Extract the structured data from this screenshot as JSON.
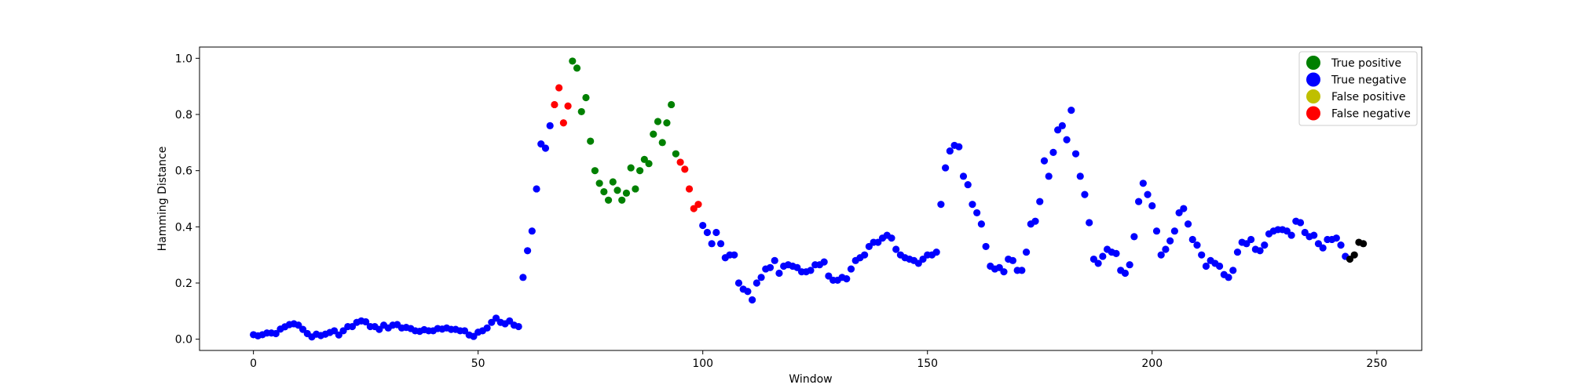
{
  "chart_data": {
    "type": "scatter",
    "xlabel": "Window",
    "ylabel": "Hamming Distance",
    "xlim": [
      -12,
      260
    ],
    "ylim": [
      -0.04,
      1.04
    ],
    "x_ticks": [
      0,
      50,
      100,
      150,
      200,
      250
    ],
    "y_ticks": [
      0.0,
      0.2,
      0.4,
      0.6,
      0.8,
      1.0
    ],
    "x_tick_labels": [
      "0",
      "50",
      "100",
      "150",
      "200",
      "250"
    ],
    "y_tick_labels": [
      "0.0",
      "0.2",
      "0.4",
      "0.6",
      "0.8",
      "1.0"
    ],
    "grid": false,
    "legend_position": "top-right",
    "colors": {
      "true_positive": "#008000",
      "true_negative": "#0000ff",
      "false_positive": "#bfbf00",
      "false_negative": "#ff0000"
    },
    "legend": [
      {
        "label": "True positive",
        "color_key": "true_positive"
      },
      {
        "label": "True negative",
        "color_key": "true_negative"
      },
      {
        "label": "False positive",
        "color_key": "false_positive"
      },
      {
        "label": "False negative",
        "color_key": "false_negative"
      }
    ],
    "x": [
      0,
      1,
      2,
      3,
      4,
      5,
      6,
      7,
      8,
      9,
      10,
      11,
      12,
      13,
      14,
      15,
      16,
      17,
      18,
      19,
      20,
      21,
      22,
      23,
      24,
      25,
      26,
      27,
      28,
      29,
      30,
      31,
      32,
      33,
      34,
      35,
      36,
      37,
      38,
      39,
      40,
      41,
      42,
      43,
      44,
      45,
      46,
      47,
      48,
      49,
      50,
      51,
      52,
      53,
      54,
      55,
      56,
      57,
      58,
      59,
      60,
      61,
      62,
      63,
      64,
      65,
      66,
      67,
      68,
      69,
      70,
      71,
      72,
      73,
      74,
      75,
      76,
      77,
      78,
      79,
      80,
      81,
      82,
      83,
      84,
      85,
      86,
      87,
      88,
      89,
      90,
      91,
      92,
      93,
      94,
      95,
      96,
      97,
      98,
      99,
      100,
      101,
      102,
      103,
      104,
      105,
      106,
      107,
      108,
      109,
      110,
      111,
      112,
      113,
      114,
      115,
      116,
      117,
      118,
      119,
      120,
      121,
      122,
      123,
      124,
      125,
      126,
      127,
      128,
      129,
      130,
      131,
      132,
      133,
      134,
      135,
      136,
      137,
      138,
      139,
      140,
      141,
      142,
      143,
      144,
      145,
      146,
      147,
      148,
      149,
      150,
      151,
      152,
      153,
      154,
      155,
      156,
      157,
      158,
      159,
      160,
      161,
      162,
      163,
      164,
      165,
      166,
      167,
      168,
      169,
      170,
      171,
      172,
      173,
      174,
      175,
      176,
      177,
      178,
      179,
      180,
      181,
      182,
      183,
      184,
      185,
      186,
      187,
      188,
      189,
      190,
      191,
      192,
      193,
      194,
      195,
      196,
      197,
      198,
      199,
      200,
      201,
      202,
      203,
      204,
      205,
      206,
      207,
      208,
      209,
      210,
      211,
      212,
      213,
      214,
      215,
      216,
      217,
      218,
      219,
      220,
      221,
      222,
      223,
      224,
      225,
      226,
      227,
      228,
      229,
      230,
      231,
      232,
      233,
      234,
      235,
      236,
      237,
      238,
      239,
      240,
      241,
      242,
      243,
      244,
      245,
      246,
      247
    ],
    "y": [
      0.016,
      0.012,
      0.016,
      0.022,
      0.022,
      0.02,
      0.036,
      0.044,
      0.052,
      0.055,
      0.05,
      0.035,
      0.02,
      0.008,
      0.018,
      0.013,
      0.018,
      0.024,
      0.03,
      0.015,
      0.03,
      0.045,
      0.045,
      0.06,
      0.065,
      0.062,
      0.045,
      0.045,
      0.035,
      0.05,
      0.04,
      0.05,
      0.052,
      0.04,
      0.042,
      0.038,
      0.03,
      0.028,
      0.034,
      0.03,
      0.03,
      0.038,
      0.036,
      0.04,
      0.035,
      0.035,
      0.03,
      0.03,
      0.015,
      0.01,
      0.025,
      0.03,
      0.04,
      0.06,
      0.075,
      0.06,
      0.055,
      0.065,
      0.05,
      0.045,
      0.22,
      0.315,
      0.385,
      0.535,
      0.695,
      0.68,
      0.76,
      0.835,
      0.895,
      0.77,
      0.83,
      0.99,
      0.965,
      0.81,
      0.86,
      0.705,
      0.6,
      0.555,
      0.525,
      0.495,
      0.56,
      0.53,
      0.495,
      0.52,
      0.61,
      0.535,
      0.6,
      0.64,
      0.625,
      0.73,
      0.775,
      0.7,
      0.77,
      0.835,
      0.66,
      0.63,
      0.605,
      0.535,
      0.465,
      0.48,
      0.405,
      0.38,
      0.34,
      0.38,
      0.34,
      0.29,
      0.3,
      0.3,
      0.2,
      0.178,
      0.17,
      0.14,
      0.2,
      0.22,
      0.25,
      0.255,
      0.28,
      0.235,
      0.26,
      0.265,
      0.26,
      0.255,
      0.24,
      0.24,
      0.245,
      0.265,
      0.265,
      0.275,
      0.225,
      0.21,
      0.21,
      0.22,
      0.215,
      0.25,
      0.28,
      0.29,
      0.3,
      0.33,
      0.345,
      0.345,
      0.36,
      0.37,
      0.36,
      0.32,
      0.3,
      0.29,
      0.285,
      0.28,
      0.27,
      0.285,
      0.3,
      0.3,
      0.31,
      0.48,
      0.61,
      0.67,
      0.69,
      0.685,
      0.58,
      0.55,
      0.48,
      0.45,
      0.41,
      0.33,
      0.26,
      0.25,
      0.255,
      0.24,
      0.285,
      0.28,
      0.245,
      0.245,
      0.31,
      0.41,
      0.42,
      0.49,
      0.635,
      0.58,
      0.665,
      0.745,
      0.76,
      0.71,
      0.815,
      0.66,
      0.58,
      0.515,
      0.415,
      0.285,
      0.27,
      0.295,
      0.32,
      0.31,
      0.305,
      0.245,
      0.235,
      0.265,
      0.365,
      0.49,
      0.555,
      0.515,
      0.475,
      0.385,
      0.3,
      0.32,
      0.35,
      0.385,
      0.45,
      0.465,
      0.41,
      0.355,
      0.335,
      0.3,
      0.26,
      0.28,
      0.27,
      0.26,
      0.23,
      0.22,
      0.245,
      0.31,
      0.345,
      0.34,
      0.355,
      0.32,
      0.315,
      0.335,
      0.375,
      0.385,
      0.39,
      0.39,
      0.385,
      0.37,
      0.42,
      0.415,
      0.38,
      0.365,
      0.37,
      0.34,
      0.325,
      0.355,
      0.355,
      0.36,
      0.335,
      0.295,
      0.285,
      0.3,
      0.345,
      0.34
    ],
    "outcome": [
      "TN",
      "TN",
      "TN",
      "TN",
      "TN",
      "TN",
      "TN",
      "TN",
      "TN",
      "TN",
      "TN",
      "TN",
      "TN",
      "TN",
      "TN",
      "TN",
      "TN",
      "TN",
      "TN",
      "TN",
      "TN",
      "TN",
      "TN",
      "TN",
      "TN",
      "TN",
      "TN",
      "TN",
      "TN",
      "TN",
      "TN",
      "TN",
      "TN",
      "TN",
      "TN",
      "TN",
      "TN",
      "TN",
      "TN",
      "TN",
      "TN",
      "TN",
      "TN",
      "TN",
      "TN",
      "TN",
      "TN",
      "TN",
      "TN",
      "TN",
      "TN",
      "TN",
      "TN",
      "TN",
      "TN",
      "TN",
      "TN",
      "TN",
      "TN",
      "TN",
      "TN",
      "TN",
      "TN",
      "TN",
      "TN",
      "TN",
      "TN",
      "FN",
      "FN",
      "FN",
      "FN",
      "TP",
      "TP",
      "TP",
      "TP",
      "TP",
      "TP",
      "TP",
      "TP",
      "TP",
      "TP",
      "TP",
      "TP",
      "TP",
      "TP",
      "TP",
      "TP",
      "TP",
      "TP",
      "TP",
      "TP",
      "TP",
      "TP",
      "TP",
      "TP",
      "FN",
      "FN",
      "FN",
      "FN",
      "FN",
      "TN",
      "TN",
      "TN",
      "TN",
      "TN",
      "TN",
      "TN",
      "TN",
      "TN",
      "TN",
      "TN",
      "TN",
      "TN",
      "TN",
      "TN",
      "TN",
      "TN",
      "TN",
      "TN",
      "TN",
      "TN",
      "TN",
      "TN",
      "TN",
      "TN",
      "TN",
      "TN",
      "TN",
      "TN",
      "TN",
      "TN",
      "TN",
      "TN",
      "TN",
      "TN",
      "TN",
      "TN",
      "TN",
      "TN",
      "TN",
      "TN",
      "TN",
      "TN",
      "TN",
      "TN",
      "TN",
      "TN",
      "TN",
      "TN",
      "TN",
      "TN",
      "TN",
      "TN",
      "TN",
      "TN",
      "TN",
      "TN",
      "TN",
      "TN",
      "TN",
      "TN",
      "TN",
      "TN",
      "TN",
      "TN",
      "TN",
      "TN",
      "TN",
      "TN",
      "TN",
      "TN",
      "TN",
      "TN",
      "TN",
      "TN",
      "TN",
      "TN",
      "TN",
      "TN",
      "TN",
      "TN",
      "TN",
      "TN",
      "TN",
      "TN",
      "TN",
      "TN",
      "TN",
      "TN",
      "TN",
      "TN",
      "TN",
      "TN",
      "TN",
      "TN",
      "TN",
      "TN",
      "TN",
      "TN",
      "TN",
      "TN",
      "TN",
      "TN",
      "TN",
      "TN",
      "TN",
      "TN",
      "TN",
      "TN",
      "TN",
      "TN",
      "TN",
      "TN",
      "TN",
      "TN",
      "TN",
      "TN",
      "TN",
      "TN",
      "TN",
      "TN",
      "TN",
      "TN",
      "TN",
      "TN",
      "TN",
      "TN",
      "TN",
      "TN",
      "TN",
      "TN",
      "TN",
      "TN",
      "TN",
      "TN",
      "TN",
      "TN",
      "TN",
      "TN",
      "TN",
      "TN",
      "TN",
      "TN",
      "TN"
    ]
  }
}
